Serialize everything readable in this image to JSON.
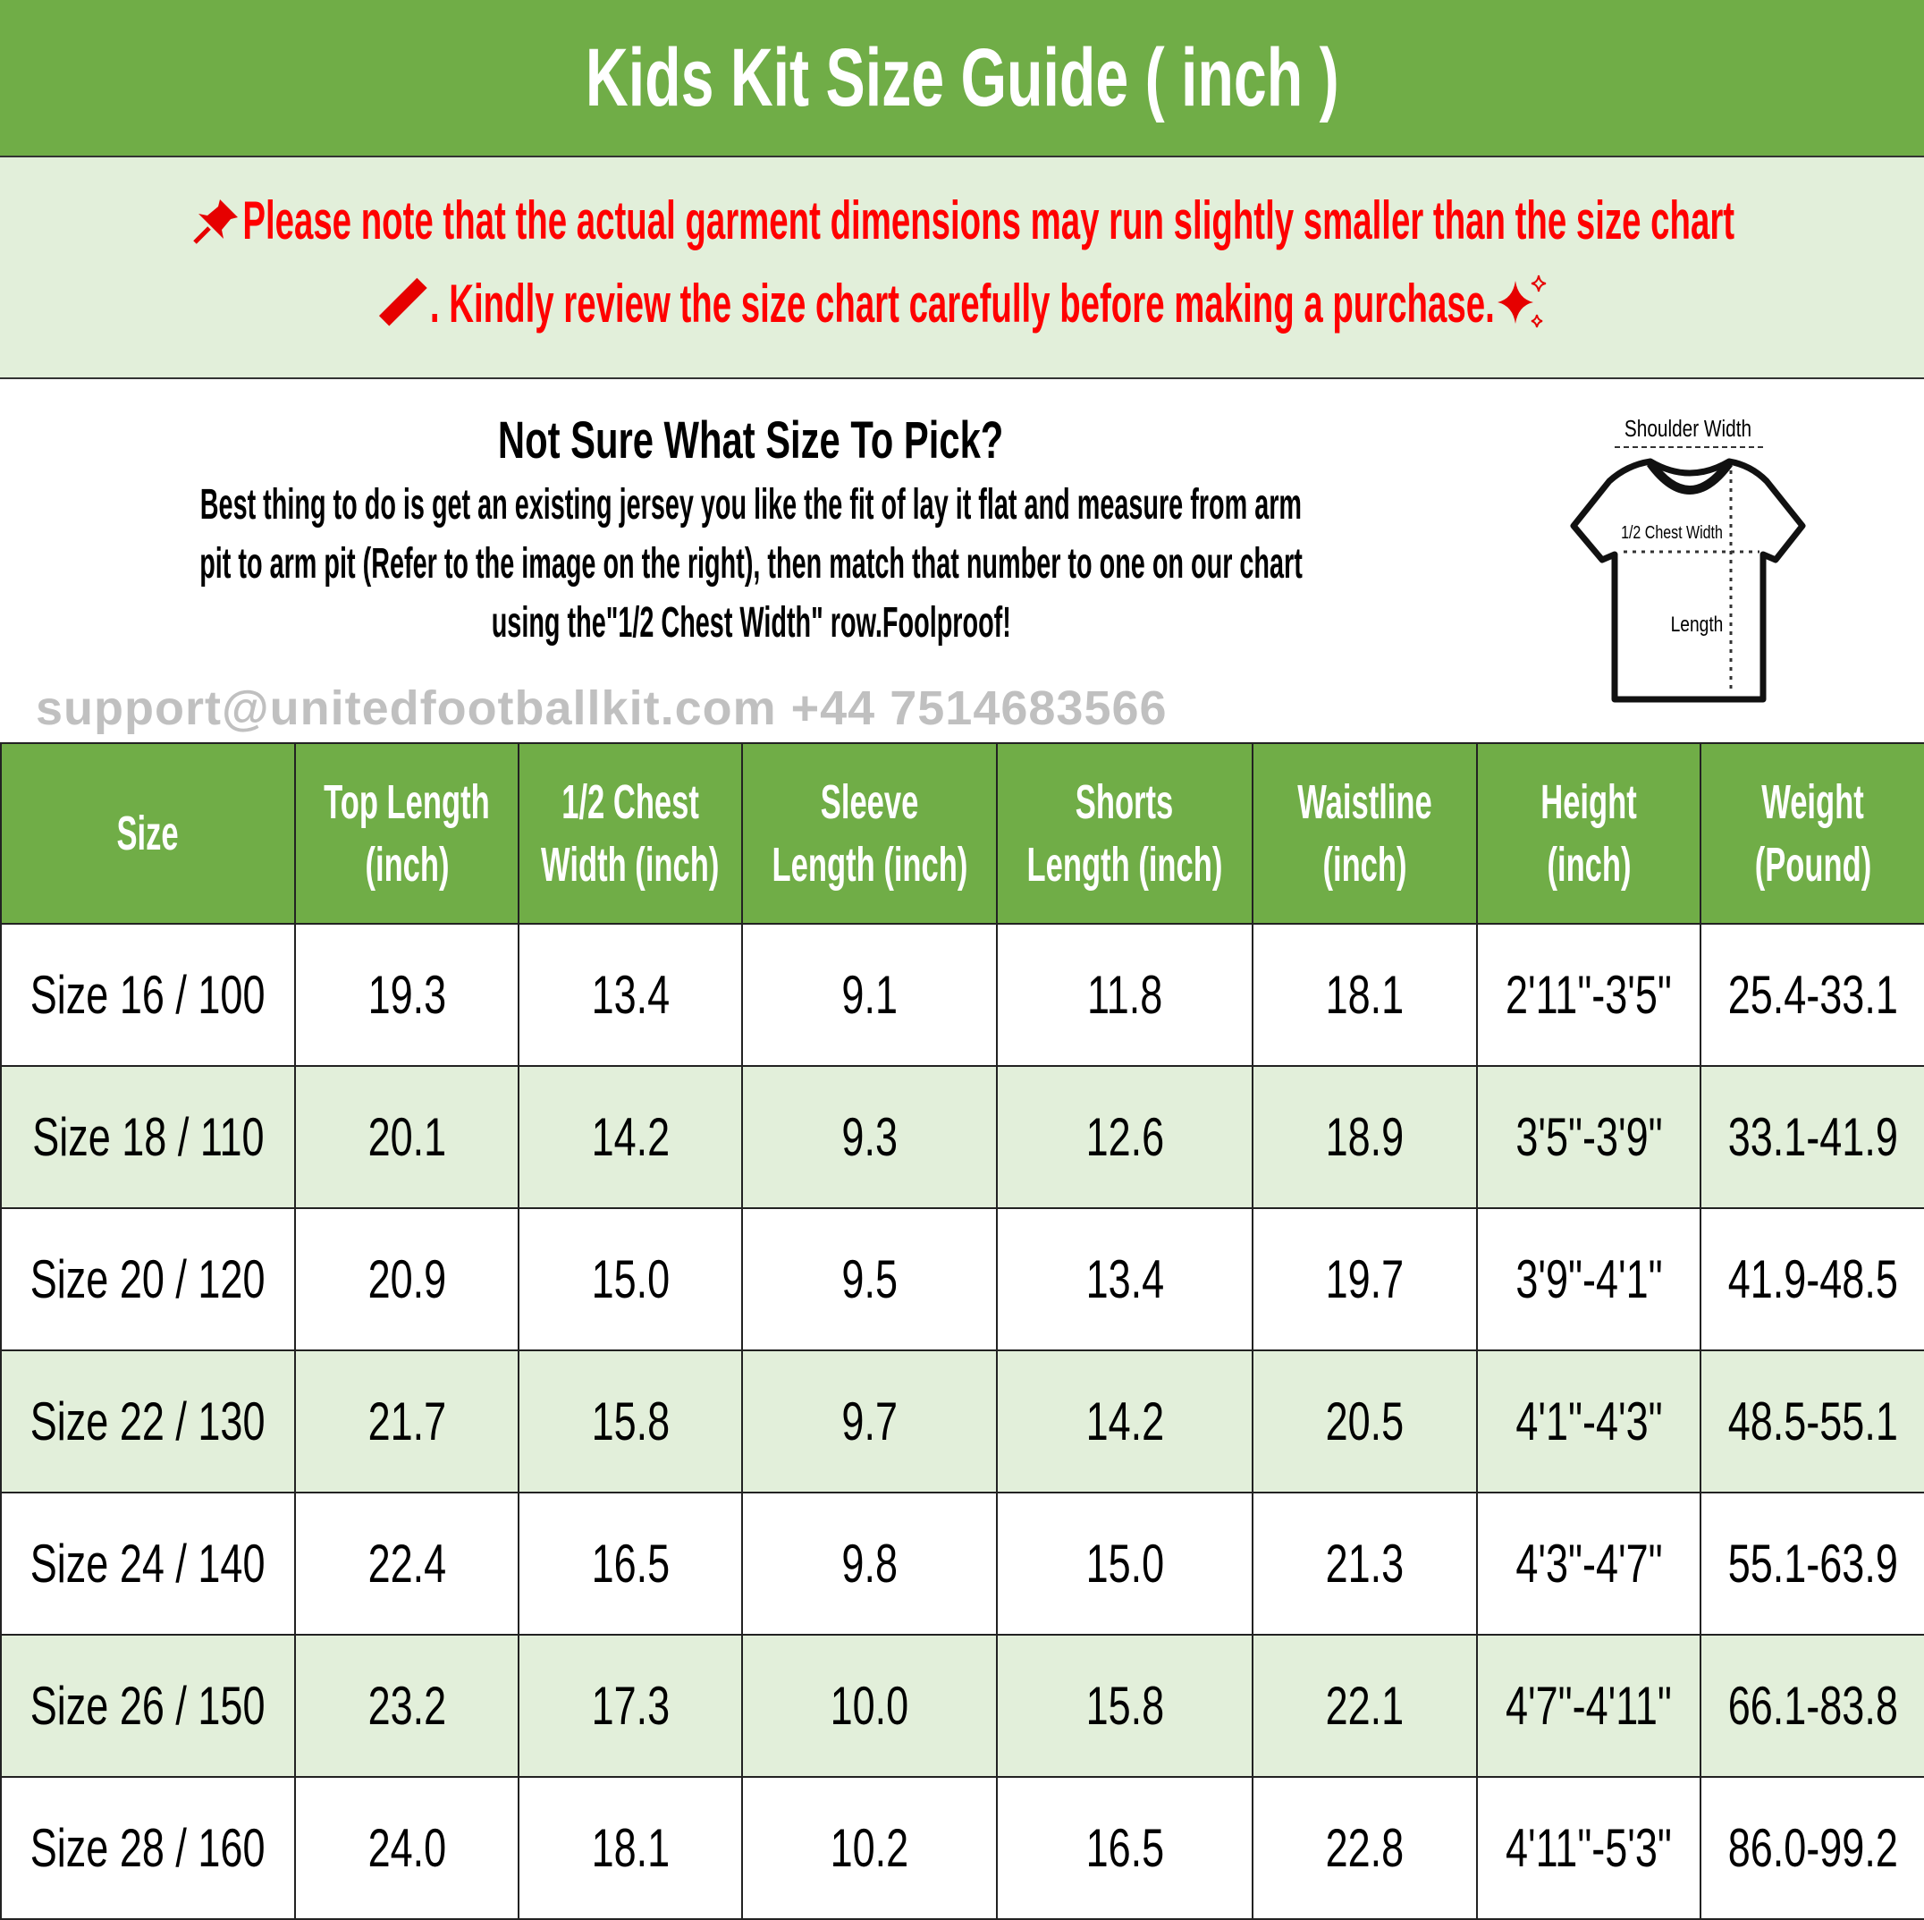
{
  "title": "Kids Kit Size Guide ( inch )",
  "note": {
    "line1": "Please note that the actual garment dimensions may run slightly smaller than the size chart",
    "line2": ". Kindly review the size chart carefully before making a purchase.",
    "icons": [
      "pushpin-icon",
      "ruler-icon",
      "sparkles-icon"
    ],
    "color": "#ff0000"
  },
  "intro": {
    "heading": "Not Sure What Size To Pick?",
    "line1": "Best thing to do is get an existing jersey you like the fit of lay it flat and measure from arm",
    "line2": "pit to arm pit (Refer to the image on the right), then match that number to one on our chart",
    "line3": "using the\"1/2 Chest Width\" row.Foolproof!"
  },
  "diagram": {
    "shoulder": "Shoulder Width",
    "chest": "1/2 Chest Width",
    "length": "Length"
  },
  "watermark": "support@unitedfootballkit.com  +44 7514683566",
  "colors": {
    "green": "#70ad47",
    "light_green": "#e2efda"
  },
  "table": {
    "headers": [
      [
        "Size",
        ""
      ],
      [
        "Top Length",
        "(inch)"
      ],
      [
        "1/2 Chest",
        "Width (inch)"
      ],
      [
        "Sleeve",
        "Length (inch)"
      ],
      [
        "Shorts",
        "Length (inch)"
      ],
      [
        "Waistline",
        "(inch)"
      ],
      [
        "Height",
        "(inch)"
      ],
      [
        "Weight",
        "(Pound)"
      ]
    ],
    "rows": [
      [
        "Size 16 / 100",
        "19.3",
        "13.4",
        "9.1",
        "11.8",
        "18.1",
        "2'11\"-3'5\"",
        "25.4-33.1"
      ],
      [
        "Size 18 / 110",
        "20.1",
        "14.2",
        "9.3",
        "12.6",
        "18.9",
        "3'5\"-3'9\"",
        "33.1-41.9"
      ],
      [
        "Size 20 / 120",
        "20.9",
        "15.0",
        "9.5",
        "13.4",
        "19.7",
        "3'9\"-4'1\"",
        "41.9-48.5"
      ],
      [
        "Size 22 / 130",
        "21.7",
        "15.8",
        "9.7",
        "14.2",
        "20.5",
        "4'1\"-4'3\"",
        "48.5-55.1"
      ],
      [
        "Size 24 / 140",
        "22.4",
        "16.5",
        "9.8",
        "15.0",
        "21.3",
        "4'3\"-4'7\"",
        "55.1-63.9"
      ],
      [
        "Size 26 / 150",
        "23.2",
        "17.3",
        "10.0",
        "15.8",
        "22.1",
        "4'7\"-4'11\"",
        "66.1-83.8"
      ],
      [
        "Size 28 / 160",
        "24.0",
        "18.1",
        "10.2",
        "16.5",
        "22.8",
        "4'11\"-5'3\"",
        "86.0-99.2"
      ]
    ]
  }
}
